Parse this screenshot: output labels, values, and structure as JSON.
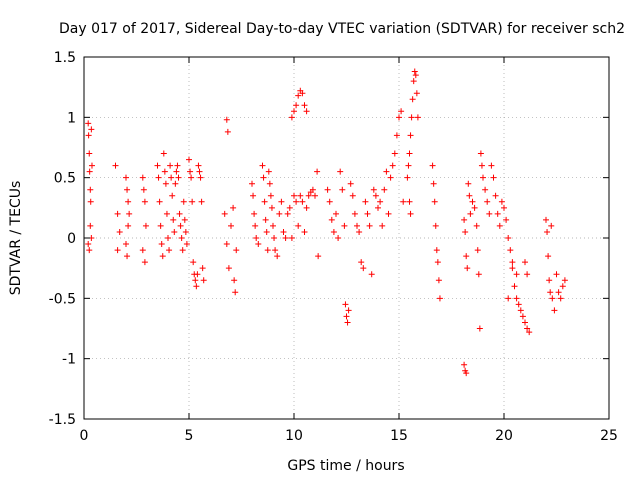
{
  "chart_data": {
    "type": "scatter",
    "title": "Day 017 of 2017, Sidereal Day-to-day VTEC variation (SDTVAR) for receiver sch2",
    "xlabel": "GPS time / hours",
    "ylabel": "SDTVAR / TECUs",
    "xlim": [
      0,
      25
    ],
    "ylim": [
      -1.5,
      1.5
    ],
    "x_ticks": [
      0,
      5,
      10,
      15,
      20,
      25
    ],
    "x_tick_labels": [
      "0",
      "5",
      "10",
      "15",
      "20",
      "25"
    ],
    "y_ticks": [
      -1.5,
      -1,
      -0.5,
      0,
      0.5,
      1,
      1.5
    ],
    "y_tick_labels": [
      "-1.5",
      "-1",
      "-0.5",
      "0",
      "0.5",
      "1",
      "1.5"
    ],
    "grid": true,
    "marker": "+",
    "series": [
      {
        "name": "SDTVAR",
        "color": "#ff0000",
        "points": [
          [
            0.2,
            0.95
          ],
          [
            0.22,
            0.85
          ],
          [
            0.25,
            0.7
          ],
          [
            0.27,
            0.55
          ],
          [
            0.3,
            0.4
          ],
          [
            0.32,
            0.3
          ],
          [
            0.35,
            0.9
          ],
          [
            0.38,
            0.6
          ],
          [
            0.2,
            -0.05
          ],
          [
            0.25,
            -0.1
          ],
          [
            0.3,
            0.1
          ],
          [
            0.35,
            0.0
          ],
          [
            1.5,
            0.6
          ],
          [
            1.6,
            0.2
          ],
          [
            1.6,
            -0.1
          ],
          [
            1.7,
            0.05
          ],
          [
            2.0,
            0.5
          ],
          [
            2.05,
            0.4
          ],
          [
            2.1,
            0.3
          ],
          [
            2.15,
            0.2
          ],
          [
            2.0,
            -0.05
          ],
          [
            2.05,
            -0.15
          ],
          [
            2.1,
            0.1
          ],
          [
            2.8,
            0.5
          ],
          [
            2.85,
            0.4
          ],
          [
            2.9,
            0.3
          ],
          [
            2.95,
            0.1
          ],
          [
            2.8,
            -0.1
          ],
          [
            2.9,
            -0.2
          ],
          [
            3.5,
            0.6
          ],
          [
            3.55,
            0.5
          ],
          [
            3.6,
            0.3
          ],
          [
            3.65,
            0.1
          ],
          [
            3.7,
            -0.05
          ],
          [
            3.75,
            -0.15
          ],
          [
            3.8,
            0.7
          ],
          [
            3.85,
            0.55
          ],
          [
            3.9,
            0.45
          ],
          [
            3.95,
            0.2
          ],
          [
            4.0,
            0.0
          ],
          [
            4.05,
            -0.1
          ],
          [
            4.1,
            0.6
          ],
          [
            4.15,
            0.5
          ],
          [
            4.2,
            0.35
          ],
          [
            4.25,
            0.15
          ],
          [
            4.3,
            0.05
          ],
          [
            4.35,
            0.45
          ],
          [
            4.4,
            0.55
          ],
          [
            4.45,
            0.6
          ],
          [
            4.5,
            0.5
          ],
          [
            4.55,
            0.2
          ],
          [
            4.6,
            0.1
          ],
          [
            4.65,
            0.0
          ],
          [
            4.7,
            -0.1
          ],
          [
            4.75,
            0.3
          ],
          [
            4.8,
            0.15
          ],
          [
            4.85,
            0.05
          ],
          [
            4.9,
            -0.05
          ],
          [
            5.0,
            0.65
          ],
          [
            5.05,
            0.55
          ],
          [
            5.1,
            0.5
          ],
          [
            5.15,
            0.3
          ],
          [
            5.2,
            -0.2
          ],
          [
            5.25,
            -0.3
          ],
          [
            5.3,
            -0.35
          ],
          [
            5.35,
            -0.4
          ],
          [
            5.4,
            -0.3
          ],
          [
            5.45,
            0.6
          ],
          [
            5.5,
            0.55
          ],
          [
            5.55,
            0.5
          ],
          [
            5.6,
            0.3
          ],
          [
            5.65,
            -0.25
          ],
          [
            5.7,
            -0.35
          ],
          [
            6.8,
            0.98
          ],
          [
            6.85,
            0.88
          ],
          [
            6.7,
            0.2
          ],
          [
            6.8,
            -0.05
          ],
          [
            6.9,
            -0.25
          ],
          [
            7.0,
            0.1
          ],
          [
            7.1,
            0.25
          ],
          [
            7.15,
            -0.35
          ],
          [
            7.2,
            -0.45
          ],
          [
            7.25,
            -0.1
          ],
          [
            8.0,
            0.45
          ],
          [
            8.05,
            0.35
          ],
          [
            8.1,
            0.2
          ],
          [
            8.15,
            0.1
          ],
          [
            8.2,
            0.0
          ],
          [
            8.3,
            -0.05
          ],
          [
            8.5,
            0.6
          ],
          [
            8.55,
            0.5
          ],
          [
            8.6,
            0.3
          ],
          [
            8.65,
            0.15
          ],
          [
            8.7,
            0.05
          ],
          [
            8.75,
            -0.1
          ],
          [
            8.8,
            0.55
          ],
          [
            8.85,
            0.45
          ],
          [
            8.9,
            0.35
          ],
          [
            8.95,
            0.25
          ],
          [
            9.0,
            0.1
          ],
          [
            9.05,
            0.0
          ],
          [
            9.1,
            -0.1
          ],
          [
            9.2,
            -0.15
          ],
          [
            9.3,
            0.2
          ],
          [
            9.4,
            0.3
          ],
          [
            9.5,
            0.05
          ],
          [
            9.6,
            0.0
          ],
          [
            9.7,
            0.2
          ],
          [
            9.8,
            0.25
          ],
          [
            9.9,
            0.0
          ],
          [
            10.0,
            0.35
          ],
          [
            10.1,
            0.3
          ],
          [
            10.2,
            0.1
          ],
          [
            10.3,
            0.35
          ],
          [
            10.4,
            0.3
          ],
          [
            10.5,
            0.05
          ],
          [
            10.6,
            0.25
          ],
          [
            10.7,
            0.35
          ],
          [
            10.8,
            0.38
          ],
          [
            10.9,
            0.4
          ],
          [
            11.0,
            0.35
          ],
          [
            11.1,
            0.55
          ],
          [
            11.15,
            -0.15
          ],
          [
            9.9,
            1.0
          ],
          [
            10.0,
            1.05
          ],
          [
            10.1,
            1.1
          ],
          [
            10.2,
            1.18
          ],
          [
            10.3,
            1.22
          ],
          [
            10.4,
            1.2
          ],
          [
            10.5,
            1.1
          ],
          [
            10.6,
            1.05
          ],
          [
            11.6,
            0.4
          ],
          [
            11.7,
            0.3
          ],
          [
            11.8,
            0.15
          ],
          [
            11.9,
            0.05
          ],
          [
            12.0,
            0.2
          ],
          [
            12.1,
            0.0
          ],
          [
            12.2,
            0.55
          ],
          [
            12.3,
            0.4
          ],
          [
            12.4,
            0.1
          ],
          [
            12.45,
            -0.55
          ],
          [
            12.5,
            -0.65
          ],
          [
            12.55,
            -0.7
          ],
          [
            12.6,
            -0.6
          ],
          [
            12.7,
            0.45
          ],
          [
            12.8,
            0.35
          ],
          [
            12.9,
            0.2
          ],
          [
            13.0,
            0.1
          ],
          [
            13.1,
            0.05
          ],
          [
            13.2,
            -0.2
          ],
          [
            13.3,
            -0.25
          ],
          [
            13.4,
            0.3
          ],
          [
            13.5,
            0.2
          ],
          [
            13.6,
            0.1
          ],
          [
            13.7,
            -0.3
          ],
          [
            13.8,
            0.4
          ],
          [
            13.9,
            0.35
          ],
          [
            14.0,
            0.25
          ],
          [
            14.1,
            0.3
          ],
          [
            14.2,
            0.1
          ],
          [
            14.3,
            0.4
          ],
          [
            14.4,
            0.55
          ],
          [
            14.5,
            0.2
          ],
          [
            14.6,
            0.5
          ],
          [
            14.7,
            0.6
          ],
          [
            14.8,
            0.7
          ],
          [
            14.9,
            0.85
          ],
          [
            15.0,
            1.0
          ],
          [
            15.1,
            1.05
          ],
          [
            15.2,
            0.3
          ],
          [
            15.4,
            0.5
          ],
          [
            15.45,
            0.6
          ],
          [
            15.5,
            0.7
          ],
          [
            15.55,
            0.85
          ],
          [
            15.6,
            1.0
          ],
          [
            15.65,
            1.15
          ],
          [
            15.7,
            1.3
          ],
          [
            15.75,
            1.38
          ],
          [
            15.8,
            1.35
          ],
          [
            15.85,
            1.2
          ],
          [
            15.9,
            1.0
          ],
          [
            15.5,
            0.3
          ],
          [
            15.55,
            0.2
          ],
          [
            16.6,
            0.6
          ],
          [
            16.65,
            0.45
          ],
          [
            16.7,
            0.3
          ],
          [
            16.75,
            0.1
          ],
          [
            16.8,
            -0.1
          ],
          [
            16.85,
            -0.2
          ],
          [
            16.9,
            -0.35
          ],
          [
            16.95,
            -0.5
          ],
          [
            18.1,
            -1.05
          ],
          [
            18.15,
            -1.1
          ],
          [
            18.2,
            -1.12
          ],
          [
            18.1,
            0.15
          ],
          [
            18.15,
            0.05
          ],
          [
            18.2,
            -0.15
          ],
          [
            18.25,
            -0.25
          ],
          [
            18.3,
            0.45
          ],
          [
            18.35,
            0.35
          ],
          [
            18.4,
            0.2
          ],
          [
            18.5,
            0.3
          ],
          [
            18.6,
            0.25
          ],
          [
            18.7,
            0.1
          ],
          [
            18.75,
            -0.1
          ],
          [
            18.8,
            -0.3
          ],
          [
            18.85,
            -0.75
          ],
          [
            18.9,
            0.7
          ],
          [
            18.95,
            0.6
          ],
          [
            19.0,
            0.5
          ],
          [
            19.1,
            0.4
          ],
          [
            19.2,
            0.3
          ],
          [
            19.3,
            0.2
          ],
          [
            19.4,
            0.6
          ],
          [
            19.5,
            0.5
          ],
          [
            19.6,
            0.35
          ],
          [
            19.7,
            0.2
          ],
          [
            19.8,
            0.1
          ],
          [
            19.9,
            0.3
          ],
          [
            20.0,
            0.25
          ],
          [
            20.1,
            0.15
          ],
          [
            20.2,
            0.0
          ],
          [
            20.3,
            -0.1
          ],
          [
            20.4,
            -0.25
          ],
          [
            20.5,
            -0.4
          ],
          [
            20.6,
            -0.5
          ],
          [
            20.7,
            -0.55
          ],
          [
            20.8,
            -0.6
          ],
          [
            20.9,
            -0.65
          ],
          [
            21.0,
            -0.7
          ],
          [
            21.1,
            -0.75
          ],
          [
            21.2,
            -0.78
          ],
          [
            20.2,
            -0.5
          ],
          [
            20.4,
            -0.2
          ],
          [
            20.6,
            -0.3
          ],
          [
            21.0,
            -0.2
          ],
          [
            21.1,
            -0.3
          ],
          [
            22.0,
            0.15
          ],
          [
            22.05,
            0.05
          ],
          [
            22.1,
            -0.15
          ],
          [
            22.15,
            -0.35
          ],
          [
            22.2,
            -0.45
          ],
          [
            22.25,
            0.1
          ],
          [
            22.3,
            -0.5
          ],
          [
            22.4,
            -0.6
          ],
          [
            22.5,
            -0.3
          ],
          [
            22.6,
            -0.45
          ],
          [
            22.7,
            -0.5
          ],
          [
            22.8,
            -0.4
          ],
          [
            22.9,
            -0.35
          ]
        ]
      }
    ]
  }
}
